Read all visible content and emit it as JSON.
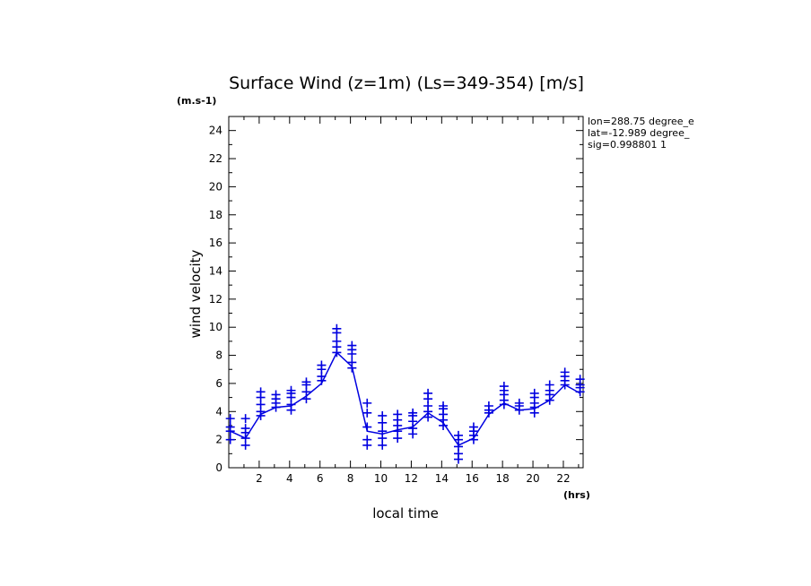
{
  "chart_data": {
    "type": "line",
    "title": "Surface Wind (z=1m) (Ls=349-354) [m/s]",
    "xlabel": "local time",
    "ylabel": "wind velocity",
    "x_unit": "(hrs)",
    "y_unit": "(m.s-1)",
    "xlim": [
      0,
      23.3
    ],
    "ylim": [
      0,
      25
    ],
    "x_ticks": [
      2,
      4,
      6,
      8,
      10,
      12,
      14,
      16,
      18,
      20,
      22
    ],
    "y_ticks": [
      0,
      2,
      4,
      6,
      8,
      10,
      12,
      14,
      16,
      18,
      20,
      22,
      24
    ],
    "grid": false,
    "color": "#0000e0",
    "info": [
      "lon=288.75 degree_e",
      "lat=-12.989 degree_",
      "sig=0.998801 1"
    ],
    "series": [
      {
        "name": "",
        "style": "line",
        "x": [
          0.1,
          1.1,
          2.1,
          3.1,
          4.1,
          5.1,
          6.1,
          7.1,
          8.1,
          9.1,
          10.1,
          11.1,
          12.1,
          13.1,
          14.1,
          15.1,
          16.1,
          17.1,
          18.1,
          19.1,
          20.1,
          21.1,
          22.1,
          23.1
        ],
        "y": [
          2.6,
          2.1,
          3.8,
          4.3,
          4.4,
          5.1,
          6.0,
          8.2,
          7.2,
          2.6,
          2.4,
          2.7,
          2.9,
          3.9,
          3.2,
          1.6,
          2.1,
          3.8,
          4.6,
          4.1,
          4.2,
          4.8,
          5.9,
          5.3
        ]
      },
      {
        "name": "",
        "style": "markers",
        "x": [
          0.1,
          1.1,
          2.1,
          3.1,
          4.1,
          5.1,
          6.1,
          7.1,
          8.1,
          9.1,
          10.1,
          11.1,
          12.1,
          13.1,
          14.1,
          15.1,
          16.1,
          17.1,
          18.1,
          19.1,
          20.1,
          21.1,
          22.1,
          23.1
        ],
        "y_sets": [
          [
            2.0,
            2.6,
            2.9,
            3.5
          ],
          [
            1.6,
            2.1,
            2.5,
            2.8,
            3.5
          ],
          [
            3.7,
            4.0,
            4.5,
            5.0,
            5.4
          ],
          [
            4.3,
            4.6,
            4.9,
            5.2
          ],
          [
            4.1,
            4.5,
            5.0,
            5.3,
            5.5
          ],
          [
            4.9,
            5.4,
            5.9,
            6.1
          ],
          [
            6.2,
            6.5,
            7.0,
            7.3
          ],
          [
            8.2,
            8.6,
            9.0,
            9.6,
            9.9
          ],
          [
            7.1,
            7.5,
            8.1,
            8.4,
            8.7
          ],
          [
            1.6,
            2.0,
            2.9,
            3.9,
            4.6
          ],
          [
            1.6,
            2.1,
            2.6,
            3.2,
            3.7
          ],
          [
            2.1,
            2.6,
            3.0,
            3.4,
            3.8
          ],
          [
            2.4,
            2.8,
            3.3,
            3.7,
            3.9
          ],
          [
            3.6,
            4.0,
            4.4,
            4.9,
            5.3
          ],
          [
            3.0,
            3.4,
            3.8,
            4.2,
            4.4
          ],
          [
            0.6,
            1.0,
            1.5,
            2.0,
            2.3
          ],
          [
            2.0,
            2.3,
            2.6,
            2.9
          ],
          [
            3.9,
            4.1,
            4.4
          ],
          [
            4.5,
            4.8,
            5.2,
            5.5,
            5.8
          ],
          [
            4.1,
            4.4,
            4.6
          ],
          [
            3.9,
            4.3,
            4.6,
            5.0,
            5.3
          ],
          [
            4.8,
            5.2,
            5.5,
            5.9
          ],
          [
            5.9,
            6.2,
            6.5,
            6.8
          ],
          [
            5.4,
            5.7,
            5.9,
            6.3
          ]
        ]
      }
    ]
  }
}
